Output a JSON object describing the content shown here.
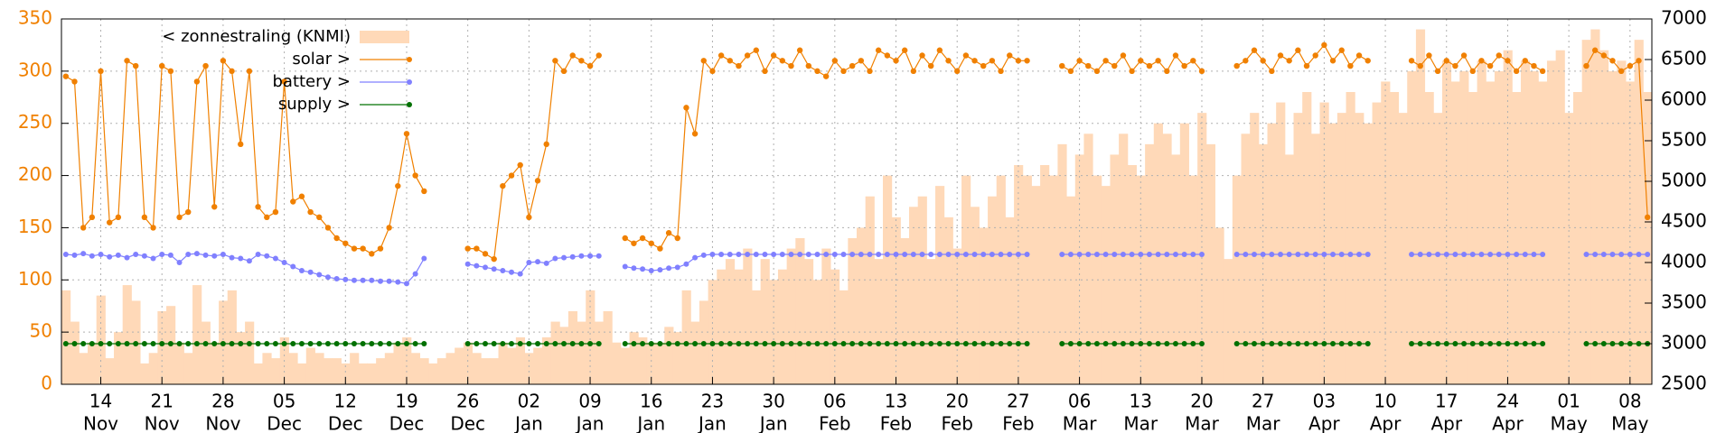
{
  "chart_data": {
    "type": "line",
    "x": [
      "10 Nov",
      "11 Nov",
      "12 Nov",
      "13 Nov",
      "14 Nov",
      "15 Nov",
      "16 Nov",
      "17 Nov",
      "18 Nov",
      "19 Nov",
      "20 Nov",
      "21 Nov",
      "22 Nov",
      "23 Nov",
      "24 Nov",
      "25 Nov",
      "26 Nov",
      "27 Nov",
      "28 Nov",
      "29 Nov",
      "30 Nov",
      "01 Dec",
      "02 Dec",
      "03 Dec",
      "04 Dec",
      "05 Dec",
      "06 Dec",
      "07 Dec",
      "08 Dec",
      "09 Dec",
      "10 Dec",
      "11 Dec",
      "12 Dec",
      "13 Dec",
      "14 Dec",
      "15 Dec",
      "16 Dec",
      "17 Dec",
      "18 Dec",
      "19 Dec",
      "20 Dec",
      "21 Dec",
      "22 Dec",
      "23 Dec",
      "24 Dec",
      "25 Dec",
      "26 Dec",
      "27 Dec",
      "28 Dec",
      "29 Dec",
      "30 Dec",
      "31 Dec",
      "01 Jan",
      "02 Jan",
      "03 Jan",
      "04 Jan",
      "05 Jan",
      "06 Jan",
      "07 Jan",
      "08 Jan",
      "09 Jan",
      "10 Jan",
      "11 Jan",
      "12 Jan",
      "13 Jan",
      "14 Jan",
      "15 Jan",
      "16 Jan",
      "17 Jan",
      "18 Jan",
      "19 Jan",
      "20 Jan",
      "21 Jan",
      "22 Jan",
      "23 Jan",
      "24 Jan",
      "25 Jan",
      "26 Jan",
      "27 Jan",
      "28 Jan",
      "29 Jan",
      "30 Jan",
      "31 Jan",
      "01 Feb",
      "02 Feb",
      "03 Feb",
      "04 Feb",
      "05 Feb",
      "06 Feb",
      "07 Feb",
      "08 Feb",
      "09 Feb",
      "10 Feb",
      "11 Feb",
      "12 Feb",
      "13 Feb",
      "14 Feb",
      "15 Feb",
      "16 Feb",
      "17 Feb",
      "18 Feb",
      "19 Feb",
      "20 Feb",
      "21 Feb",
      "22 Feb",
      "23 Feb",
      "24 Feb",
      "25 Feb",
      "26 Feb",
      "27 Feb",
      "28 Feb",
      "01 Mar",
      "02 Mar",
      "03 Mar",
      "04 Mar",
      "05 Mar",
      "06 Mar",
      "07 Mar",
      "08 Mar",
      "09 Mar",
      "10 Mar",
      "11 Mar",
      "12 Mar",
      "13 Mar",
      "14 Mar",
      "15 Mar",
      "16 Mar",
      "17 Mar",
      "18 Mar",
      "19 Mar",
      "20 Mar",
      "21 Mar",
      "22 Mar",
      "23 Mar",
      "24 Mar",
      "25 Mar",
      "26 Mar",
      "27 Mar",
      "28 Mar",
      "29 Mar",
      "30 Mar",
      "31 Mar",
      "01 Apr",
      "02 Apr",
      "03 Apr",
      "04 Apr",
      "05 Apr",
      "06 Apr",
      "07 Apr",
      "08 Apr",
      "09 Apr",
      "10 Apr",
      "11 Apr",
      "12 Apr",
      "13 Apr",
      "14 Apr",
      "15 Apr",
      "16 Apr",
      "17 Apr",
      "18 Apr",
      "19 Apr",
      "20 Apr",
      "21 Apr",
      "22 Apr",
      "23 Apr",
      "24 Apr",
      "25 Apr",
      "26 Apr",
      "27 Apr",
      "28 Apr",
      "29 Apr",
      "30 Apr",
      "01 May",
      "02 May",
      "03 May",
      "04 May",
      "05 May",
      "06 May",
      "07 May",
      "08 May",
      "09 May",
      "10 May"
    ],
    "xticks": [
      {
        "value": "14 Nov",
        "day": "14",
        "month": "Nov"
      },
      {
        "value": "21 Nov",
        "day": "21",
        "month": "Nov"
      },
      {
        "value": "28 Nov",
        "day": "28",
        "month": "Nov"
      },
      {
        "value": "05 Dec",
        "day": "05",
        "month": "Dec"
      },
      {
        "value": "12 Dec",
        "day": "12",
        "month": "Dec"
      },
      {
        "value": "19 Dec",
        "day": "19",
        "month": "Dec"
      },
      {
        "value": "26 Dec",
        "day": "26",
        "month": "Dec"
      },
      {
        "value": "02 Jan",
        "day": "02",
        "month": "Jan"
      },
      {
        "value": "09 Jan",
        "day": "09",
        "month": "Jan"
      },
      {
        "value": "16 Jan",
        "day": "16",
        "month": "Jan"
      },
      {
        "value": "23 Jan",
        "day": "23",
        "month": "Jan"
      },
      {
        "value": "30 Jan",
        "day": "30",
        "month": "Jan"
      },
      {
        "value": "06 Feb",
        "day": "06",
        "month": "Feb"
      },
      {
        "value": "13 Feb",
        "day": "13",
        "month": "Feb"
      },
      {
        "value": "20 Feb",
        "day": "20",
        "month": "Feb"
      },
      {
        "value": "27 Feb",
        "day": "27",
        "month": "Feb"
      },
      {
        "value": "06 Mar",
        "day": "06",
        "month": "Mar"
      },
      {
        "value": "13 Mar",
        "day": "13",
        "month": "Mar"
      },
      {
        "value": "20 Mar",
        "day": "20",
        "month": "Mar"
      },
      {
        "value": "27 Mar",
        "day": "27",
        "month": "Mar"
      },
      {
        "value": "03 Apr",
        "day": "03",
        "month": "Apr"
      },
      {
        "value": "10 Apr",
        "day": "10",
        "month": "Apr"
      },
      {
        "value": "17 Apr",
        "day": "17",
        "month": "Apr"
      },
      {
        "value": "24 Apr",
        "day": "24",
        "month": "Apr"
      },
      {
        "value": "01 May",
        "day": "01",
        "month": "May"
      },
      {
        "value": "08 May",
        "day": "08",
        "month": "May"
      }
    ],
    "ylim": [
      0,
      350
    ],
    "yticks": [
      0,
      50,
      100,
      150,
      200,
      250,
      300,
      350
    ],
    "y2lim": [
      2500,
      7000
    ],
    "y2ticks": [
      2500,
      3000,
      3500,
      4000,
      4500,
      5000,
      5500,
      6000,
      6500,
      7000
    ],
    "grid": true,
    "legend": "top-left",
    "series": [
      {
        "name": "< zonnestraling (KNMI)",
        "color": "#ffd9b8",
        "style": "bars",
        "values": [
          90,
          60,
          30,
          40,
          85,
          25,
          50,
          95,
          80,
          20,
          30,
          70,
          75,
          40,
          30,
          95,
          60,
          40,
          80,
          90,
          50,
          60,
          20,
          30,
          25,
          45,
          30,
          20,
          35,
          30,
          25,
          25,
          20,
          30,
          20,
          20,
          25,
          30,
          40,
          45,
          30,
          25,
          20,
          25,
          30,
          35,
          40,
          30,
          25,
          25,
          40,
          35,
          45,
          30,
          35,
          45,
          60,
          55,
          70,
          60,
          90,
          60,
          70,
          40,
          35,
          50,
          45,
          40,
          40,
          55,
          50,
          90,
          60,
          80,
          100,
          110,
          120,
          110,
          130,
          90,
          120,
          100,
          110,
          130,
          140,
          120,
          100,
          130,
          110,
          90,
          140,
          150,
          180,
          120,
          200,
          160,
          140,
          170,
          180,
          120,
          190,
          160,
          130,
          200,
          170,
          150,
          180,
          200,
          160,
          210,
          200,
          190,
          210,
          200,
          230,
          180,
          220,
          240,
          200,
          190,
          220,
          240,
          210,
          200,
          230,
          250,
          240,
          220,
          250,
          200,
          260,
          230,
          150,
          120,
          200,
          240,
          260,
          230,
          250,
          270,
          220,
          260,
          280,
          240,
          270,
          250,
          260,
          280,
          260,
          250,
          270,
          290,
          280,
          260,
          300,
          340,
          280,
          260,
          310,
          290,
          300,
          280,
          310,
          290,
          300,
          320,
          280,
          310,
          300,
          290,
          310,
          320,
          260,
          280,
          330,
          340,
          320,
          300,
          310,
          290,
          330,
          280
        ]
      },
      {
        "name": "solar >",
        "color": "#f08000",
        "style": "linespoints",
        "values": [
          295,
          290,
          150,
          160,
          300,
          155,
          160,
          310,
          305,
          160,
          150,
          305,
          300,
          160,
          165,
          290,
          305,
          170,
          310,
          300,
          230,
          300,
          170,
          160,
          165,
          290,
          175,
          180,
          165,
          160,
          150,
          140,
          135,
          130,
          130,
          125,
          130,
          150,
          190,
          240,
          200,
          185,
          null,
          null,
          null,
          null,
          130,
          130,
          125,
          120,
          190,
          200,
          210,
          160,
          195,
          230,
          310,
          300,
          315,
          310,
          305,
          315,
          null,
          null,
          140,
          135,
          140,
          135,
          130,
          145,
          140,
          265,
          240,
          310,
          300,
          315,
          310,
          305,
          315,
          320,
          300,
          315,
          310,
          305,
          320,
          305,
          300,
          295,
          310,
          300,
          305,
          310,
          300,
          320,
          315,
          310,
          320,
          300,
          315,
          305,
          320,
          310,
          300,
          315,
          310,
          305,
          310,
          300,
          315,
          310,
          310,
          null,
          null,
          null,
          305,
          300,
          310,
          305,
          300,
          310,
          305,
          315,
          300,
          310,
          305,
          310,
          300,
          315,
          305,
          310,
          300,
          null,
          null,
          null,
          305,
          310,
          320,
          310,
          300,
          315,
          310,
          320,
          305,
          315,
          325,
          310,
          320,
          305,
          315,
          310,
          null,
          null,
          null,
          null,
          310,
          305,
          315,
          300,
          310,
          305,
          315,
          300,
          310,
          305,
          315,
          310,
          300,
          310,
          305,
          300,
          null,
          null,
          null,
          null,
          305,
          320,
          315,
          310,
          300,
          305,
          310,
          160
        ]
      },
      {
        "name": "battery >",
        "color": "#8080ff",
        "style": "points",
        "axis": "y2",
        "values": [
          4100,
          4090,
          4110,
          4080,
          4100,
          4070,
          4090,
          4060,
          4100,
          4080,
          4050,
          4100,
          4090,
          4000,
          4100,
          4110,
          4090,
          4080,
          4100,
          4060,
          4050,
          4020,
          4100,
          4080,
          4050,
          4000,
          3950,
          3900,
          3880,
          3850,
          3820,
          3800,
          3790,
          3780,
          3780,
          3780,
          3770,
          3770,
          3760,
          3740,
          3860,
          4050,
          null,
          null,
          null,
          null,
          3980,
          3960,
          3940,
          3920,
          3900,
          3880,
          3860,
          4000,
          4010,
          3990,
          4050,
          4060,
          4070,
          4080,
          4080,
          4080,
          null,
          null,
          3950,
          3930,
          3920,
          3900,
          3910,
          3930,
          3940,
          3980,
          4060,
          4090,
          4100,
          4100,
          4100,
          4100,
          4100,
          4100,
          4100,
          4100,
          4100,
          4100,
          4100,
          4100,
          4100,
          4100,
          4100,
          4100,
          4100,
          4100,
          4100,
          4100,
          4100,
          4100,
          4100,
          4100,
          4100,
          4100,
          4100,
          4100,
          4100,
          4100,
          4100,
          4100,
          4100,
          4100,
          4100,
          4100,
          4100,
          null,
          null,
          null,
          4100,
          4100,
          4100,
          4100,
          4100,
          4100,
          4100,
          4100,
          4100,
          4100,
          4100,
          4100,
          4100,
          4100,
          4100,
          4100,
          4100,
          null,
          null,
          null,
          4100,
          4100,
          4100,
          4100,
          4100,
          4100,
          4100,
          4100,
          4100,
          4100,
          4100,
          4100,
          4100,
          4100,
          4100,
          4100,
          null,
          null,
          null,
          null,
          4100,
          4100,
          4100,
          4100,
          4100,
          4100,
          4100,
          4100,
          4100,
          4100,
          4100,
          4100,
          4100,
          4100,
          4100,
          4100,
          null,
          null,
          null,
          null,
          4100,
          4100,
          4100,
          4100,
          4100,
          4100,
          4100,
          4100
        ]
      },
      {
        "name": "supply >",
        "color": "#007000",
        "style": "points",
        "axis": "y2",
        "values": [
          3000,
          3000,
          3000,
          3000,
          3000,
          3000,
          3000,
          3000,
          3000,
          3000,
          3000,
          3000,
          3000,
          3000,
          3000,
          3000,
          3000,
          3000,
          3000,
          3000,
          3000,
          3000,
          3000,
          3000,
          3000,
          3000,
          3000,
          3000,
          3000,
          3000,
          3000,
          3000,
          3000,
          3000,
          3000,
          3000,
          3000,
          3000,
          3000,
          3000,
          3000,
          3000,
          null,
          null,
          null,
          null,
          3000,
          3000,
          3000,
          3000,
          3000,
          3000,
          3000,
          3000,
          3000,
          3000,
          3000,
          3000,
          3000,
          3000,
          3000,
          3000,
          null,
          null,
          3000,
          3000,
          3000,
          3000,
          3000,
          3000,
          3000,
          3000,
          3000,
          3000,
          3000,
          3000,
          3000,
          3000,
          3000,
          3000,
          3000,
          3000,
          3000,
          3000,
          3000,
          3000,
          3000,
          3000,
          3000,
          3000,
          3000,
          3000,
          3000,
          3000,
          3000,
          3000,
          3000,
          3000,
          3000,
          3000,
          3000,
          3000,
          3000,
          3000,
          3000,
          3000,
          3000,
          3000,
          3000,
          3000,
          3000,
          null,
          null,
          null,
          3000,
          3000,
          3000,
          3000,
          3000,
          3000,
          3000,
          3000,
          3000,
          3000,
          3000,
          3000,
          3000,
          3000,
          3000,
          3000,
          3000,
          null,
          null,
          null,
          3000,
          3000,
          3000,
          3000,
          3000,
          3000,
          3000,
          3000,
          3000,
          3000,
          3000,
          3000,
          3000,
          3000,
          3000,
          3000,
          null,
          null,
          null,
          null,
          3000,
          3000,
          3000,
          3000,
          3000,
          3000,
          3000,
          3000,
          3000,
          3000,
          3000,
          3000,
          3000,
          3000,
          3000,
          3000,
          null,
          null,
          null,
          null,
          3000,
          3000,
          3000,
          3000,
          3000,
          3000,
          3000,
          3000
        ]
      }
    ]
  }
}
